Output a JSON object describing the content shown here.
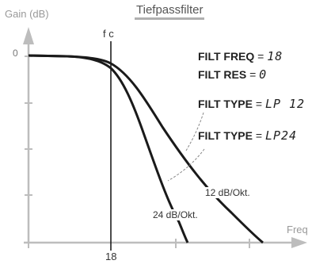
{
  "diagram": {
    "title": "Tiefpassfilter",
    "y_axis_label": "Gain (dB)",
    "x_axis_label": "Freq",
    "zero_label": "0",
    "cutoff_label": "f c",
    "cutoff_value": "18",
    "params": [
      {
        "key": "FILT FREQ",
        "value": "18"
      },
      {
        "key": "FILT RES",
        "value": "0"
      },
      {
        "key": "FILT TYPE",
        "value": "LP 12"
      },
      {
        "key": "FILT TYPE",
        "value": "LP24"
      }
    ],
    "slopes": {
      "lp12": "12 dB/Okt.",
      "lp24": "24 dB/Okt."
    }
  }
}
